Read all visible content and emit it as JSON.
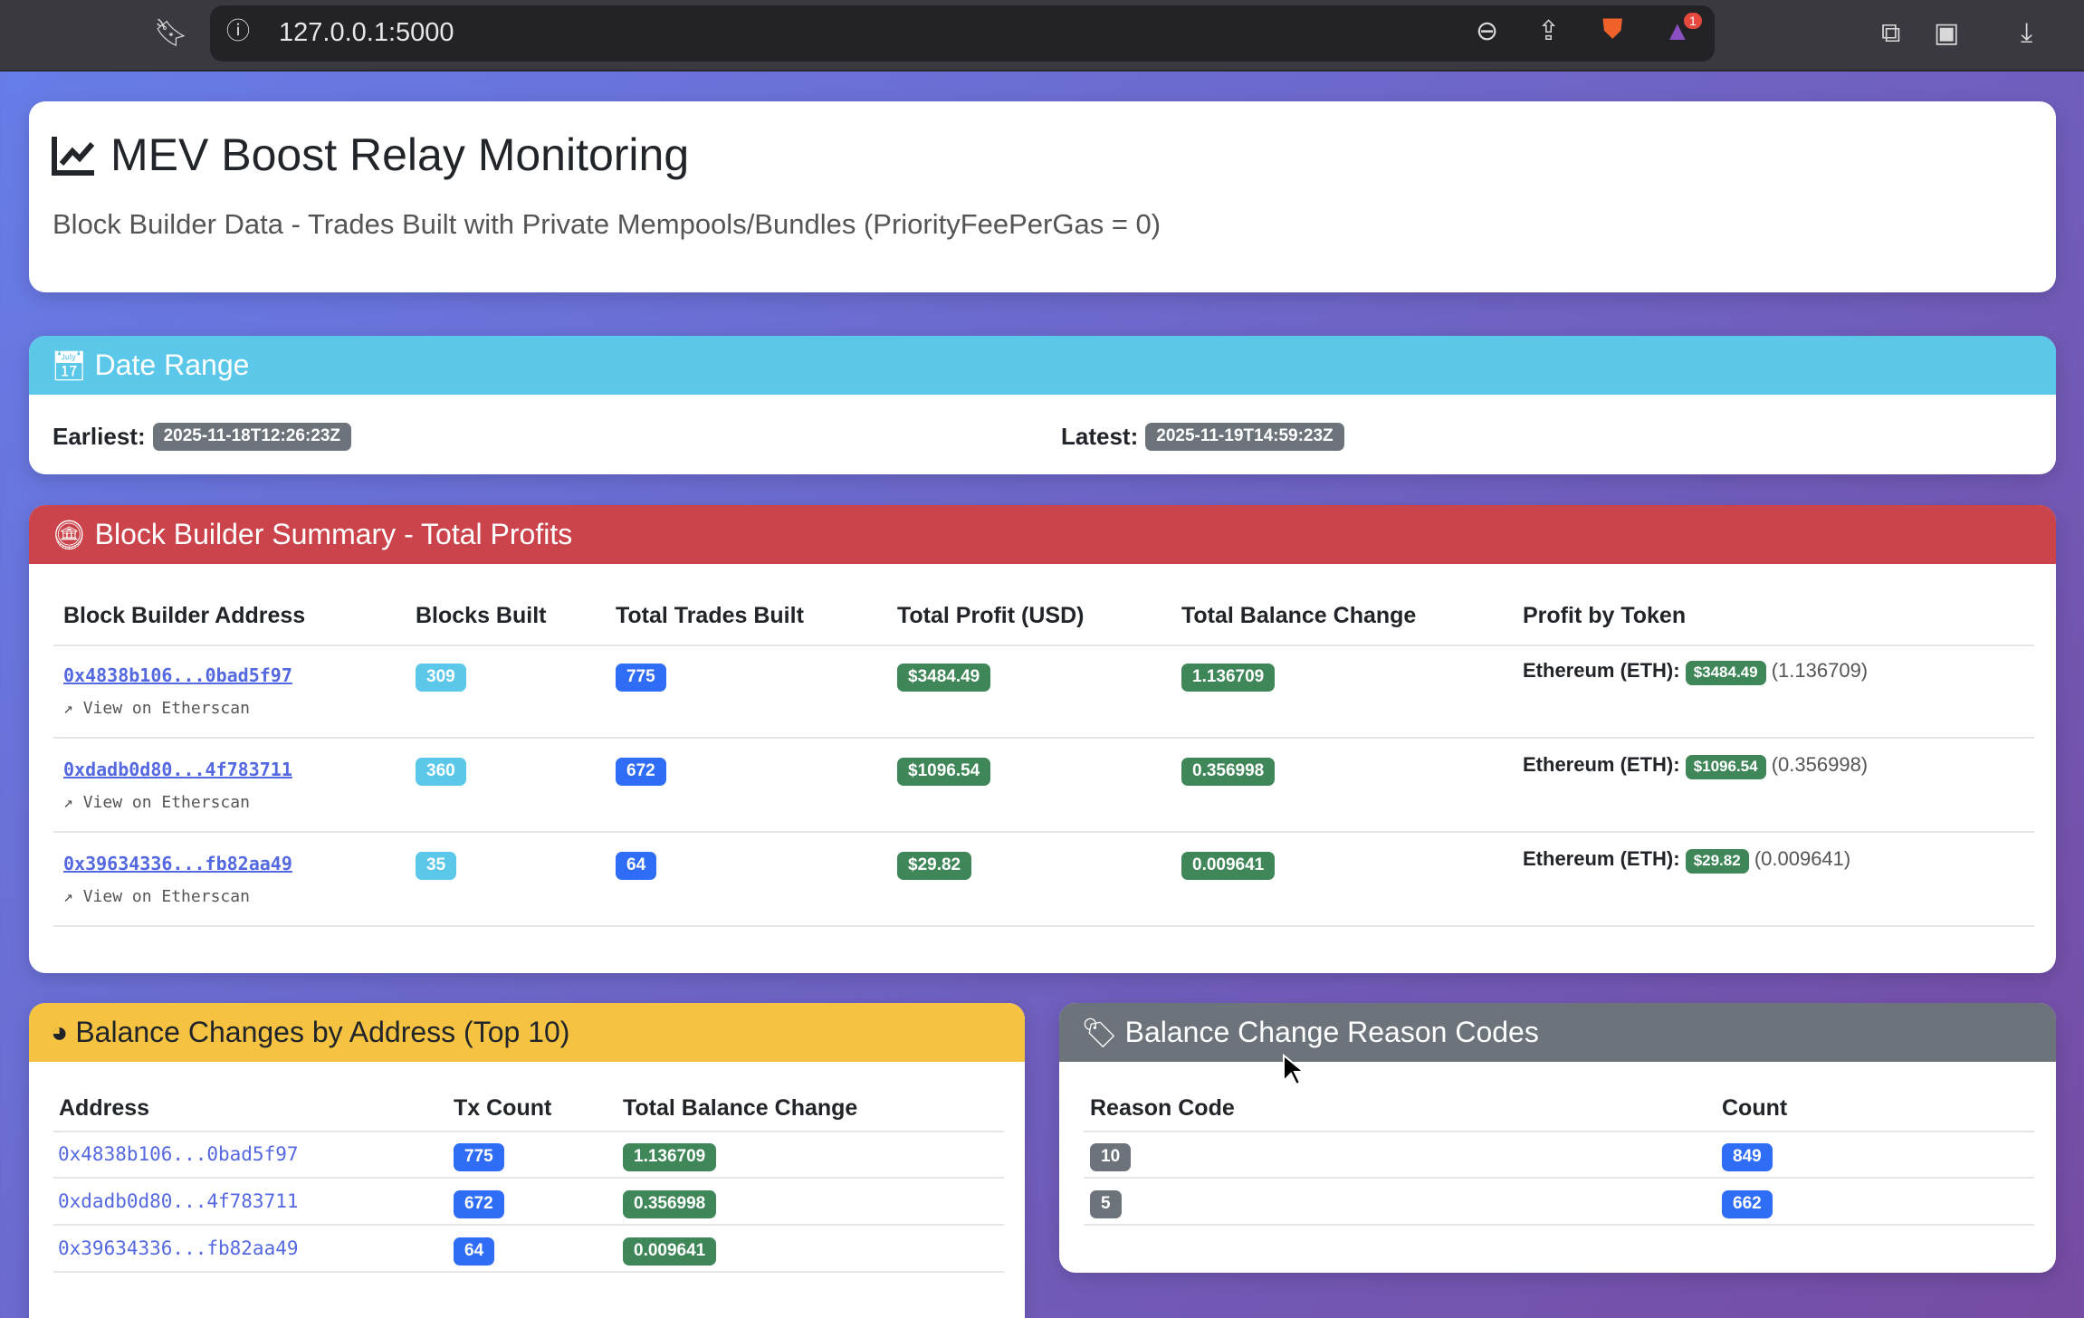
{
  "browser": {
    "url": "127.0.0.1:5000",
    "notification_count": "1"
  },
  "header": {
    "title": "MEV Boost Relay Monitoring",
    "subtitle": "Block Builder Data - Trades Built with Private Mempools/Bundles (PriorityFeePerGas = 0)"
  },
  "date_range": {
    "title": "Date Range",
    "earliest_label": "Earliest:",
    "earliest": "2025-11-18T12:26:23Z",
    "latest_label": "Latest:",
    "latest": "2025-11-19T14:59:23Z",
    "color": "#5bc8ea"
  },
  "summary": {
    "title": "Block Builder Summary - Total Profits",
    "color": "#cc444b",
    "columns": [
      "Block Builder Address",
      "Blocks Built",
      "Total Trades Built",
      "Total Profit (USD)",
      "Total Balance Change",
      "Profit by Token"
    ],
    "etherscan_label": "View on Etherscan",
    "rows": [
      {
        "address": "0x4838b106...0bad5f97",
        "blocks": "309",
        "trades": "775",
        "profit": "$3484.49",
        "balance": "1.136709",
        "token": "Ethereum (ETH):",
        "token_usd": "$3484.49",
        "token_amt": "(1.136709)"
      },
      {
        "address": "0xdadb0d80...4f783711",
        "blocks": "360",
        "trades": "672",
        "profit": "$1096.54",
        "balance": "0.356998",
        "token": "Ethereum (ETH):",
        "token_usd": "$1096.54",
        "token_amt": "(0.356998)"
      },
      {
        "address": "0x39634336...fb82aa49",
        "blocks": "35",
        "trades": "64",
        "profit": "$29.82",
        "balance": "0.009641",
        "token": "Ethereum (ETH):",
        "token_usd": "$29.82",
        "token_amt": "(0.009641)"
      }
    ]
  },
  "balance_changes": {
    "title": "Balance Changes by Address (Top 10)",
    "color": "#f5c242",
    "columns": [
      "Address",
      "Tx Count",
      "Total Balance Change"
    ],
    "rows": [
      {
        "address": "0x4838b106...0bad5f97",
        "tx": "775",
        "change": "1.136709"
      },
      {
        "address": "0xdadb0d80...4f783711",
        "tx": "672",
        "change": "0.356998"
      },
      {
        "address": "0x39634336...fb82aa49",
        "tx": "64",
        "change": "0.009641"
      }
    ]
  },
  "reason_codes": {
    "title": "Balance Change Reason Codes",
    "color": "#6c737b",
    "columns": [
      "Reason Code",
      "Count"
    ],
    "rows": [
      {
        "code": "10",
        "count": "849"
      },
      {
        "code": "5",
        "count": "662"
      }
    ]
  }
}
